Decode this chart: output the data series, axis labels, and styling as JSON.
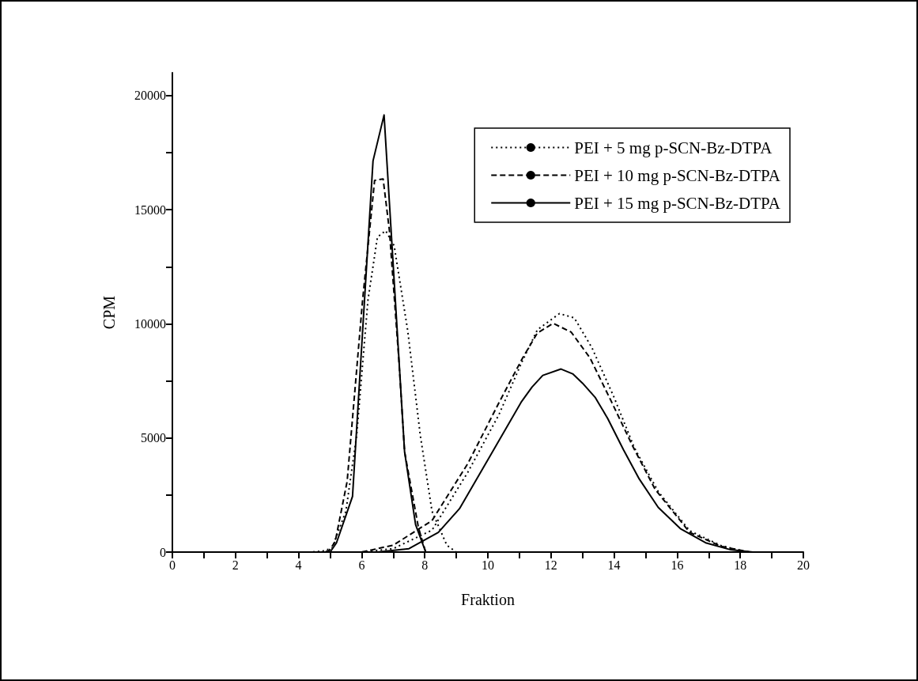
{
  "chart_data": {
    "type": "line",
    "xlabel": "Fraktion",
    "ylabel": "CPM",
    "xlim": [
      0,
      20
    ],
    "xticks": [
      0,
      {
        "value": 1,
        "label": null
      },
      2,
      {
        "value": 3,
        "label": null
      },
      4,
      {
        "value": 5,
        "label": null
      },
      6,
      {
        "value": 7,
        "label": null
      },
      8,
      {
        "value": 9,
        "label": null
      },
      10,
      {
        "value": 11,
        "label": null
      },
      12,
      {
        "value": 13,
        "label": null
      },
      14,
      {
        "value": 15,
        "label": null
      },
      16,
      {
        "value": 17,
        "label": null
      },
      18,
      {
        "value": 19,
        "label": null
      },
      20
    ],
    "ylim": [
      0,
      21000
    ],
    "yticks": [
      0,
      {
        "value": 2500,
        "label": null
      },
      5000,
      {
        "value": 7500,
        "label": null
      },
      10000,
      {
        "value": 12500,
        "label": null
      },
      15000,
      {
        "value": 17500,
        "label": null
      },
      20000
    ],
    "grid": false,
    "legend": "top right",
    "marker": "none",
    "series": [
      {
        "name": "PEI + 5 mg p-SCN-Bz-DTPA",
        "color": "#000000",
        "line_style": "dotted",
        "x": [
          1,
          4.4,
          4.78,
          5.06,
          5.5,
          5.84,
          6.2,
          6.5,
          6.76,
          7.03,
          7.46,
          7.86,
          8.23,
          8.7,
          9.0
        ],
        "values": [
          0,
          0,
          50,
          170,
          1790,
          5100,
          11050,
          13800,
          14080,
          13420,
          9700,
          5100,
          1790,
          300,
          0
        ]
      },
      {
        "name": "PEI + 10 mg p-SCN-Bz-DTPA",
        "color": "#000000",
        "line_style": "dashed",
        "x": [
          1,
          4.7,
          4.96,
          5.16,
          5.54,
          6.03,
          6.41,
          6.68,
          6.88,
          7.18,
          7.36,
          7.8,
          8.03
        ],
        "values": [
          0,
          0,
          50,
          450,
          3100,
          11050,
          16280,
          16350,
          14080,
          8400,
          4400,
          1070,
          0
        ]
      },
      {
        "name": "PEI + 15 mg p-SCN-Bz-DTPA",
        "color": "#000000",
        "line_style": "solid",
        "x": [
          1,
          5.0,
          5.2,
          5.71,
          6.36,
          6.71,
          7.36,
          7.71,
          8.03
        ],
        "values": [
          0,
          0,
          400,
          2440,
          17140,
          19150,
          4400,
          1200,
          0
        ]
      },
      {
        "color": "#000000",
        "line_style": "dotted",
        "x": [
          6.0,
          7.0,
          8.23,
          9.37,
          10.35,
          11.07,
          11.57,
          12.27,
          12.74,
          13.3,
          14.0,
          14.64,
          15.4,
          16.4,
          17.4,
          18.2
        ],
        "values": [
          0,
          150,
          960,
          3510,
          6020,
          8300,
          9740,
          10450,
          10260,
          8950,
          6780,
          4580,
          2650,
          930,
          280,
          0
        ]
      },
      {
        "color": "#000000",
        "line_style": "dashed",
        "x": [
          6.0,
          7.0,
          8.23,
          9.37,
          10.35,
          11.1,
          11.57,
          12.07,
          12.64,
          13.24,
          13.9,
          14.57,
          15.3,
          16.4,
          17.4,
          18.3
        ],
        "values": [
          0,
          300,
          1380,
          3890,
          6540,
          8500,
          9600,
          10020,
          9640,
          8500,
          6640,
          4700,
          2750,
          860,
          250,
          0
        ]
      },
      {
        "color": "#000000",
        "line_style": "solid",
        "x": [
          6.5,
          7.5,
          8.43,
          9.1,
          10.15,
          11.07,
          11.4,
          11.74,
          12.32,
          12.7,
          13.0,
          13.4,
          13.8,
          14.3,
          14.8,
          15.4,
          16.1,
          16.9,
          17.7,
          18.4
        ],
        "values": [
          0,
          150,
          860,
          1900,
          4400,
          6600,
          7230,
          7740,
          8020,
          7800,
          7400,
          6780,
          5850,
          4480,
          3200,
          1960,
          1030,
          410,
          100,
          0
        ]
      }
    ]
  }
}
